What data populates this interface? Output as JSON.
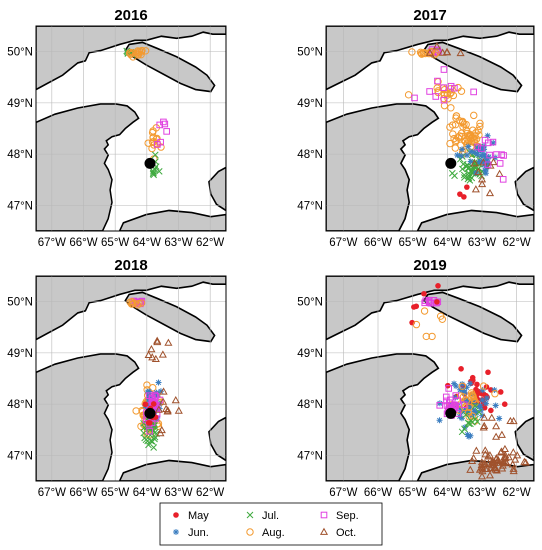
{
  "chart_data": {
    "type": "scatter",
    "legend": {
      "placement": "bottom-center",
      "entries": [
        {
          "key": "may",
          "label": "May",
          "color": "#e8202a",
          "marker": "dot"
        },
        {
          "key": "jun",
          "label": "Jun.",
          "color": "#3a7dc0",
          "marker": "asterisk"
        },
        {
          "key": "jul",
          "label": "Jul.",
          "color": "#3faa3f",
          "marker": "x"
        },
        {
          "key": "aug",
          "label": "Aug.",
          "color": "#f39a30",
          "marker": "circle"
        },
        {
          "key": "sep",
          "label": "Sep.",
          "color": "#e040e0",
          "marker": "square"
        },
        {
          "key": "oct",
          "label": "Oct.",
          "color": "#a0522d",
          "marker": "triangle"
        }
      ]
    },
    "axes": {
      "lon_range": [
        -67.5,
        -61.5
      ],
      "lat_range": [
        46.5,
        50.5
      ],
      "lon_ticks": [
        -67,
        -66,
        -65,
        -64,
        -63,
        -62
      ],
      "lon_tick_labels": [
        "67°W",
        "66°W",
        "65°W",
        "64°W",
        "63°W",
        "62°W"
      ],
      "lat_ticks": [
        47,
        48,
        49,
        50
      ],
      "lat_tick_labels": [
        "47°N",
        "48°N",
        "49°N",
        "50°N"
      ],
      "grid": true
    },
    "site": {
      "lon": -63.9,
      "lat": 47.82
    },
    "panels": [
      {
        "title": "2016",
        "clusters": [
          {
            "key": "jul",
            "lon": -64.55,
            "lat": 49.98,
            "slon": 0.12,
            "slat": 0.04,
            "n": 10
          },
          {
            "key": "aug",
            "lon": -64.25,
            "lat": 49.98,
            "slon": 0.22,
            "slat": 0.05,
            "n": 14
          },
          {
            "key": "aug",
            "lon": -63.8,
            "lat": 48.25,
            "slon": 0.22,
            "slat": 0.25,
            "n": 16
          },
          {
            "key": "sep",
            "lon": -63.55,
            "lat": 48.5,
            "slon": 0.22,
            "slat": 0.25,
            "n": 6
          },
          {
            "key": "jul",
            "lon": -63.75,
            "lat": 47.75,
            "slon": 0.15,
            "slat": 0.25,
            "n": 10
          }
        ]
      },
      {
        "title": "2017",
        "clusters": [
          {
            "key": "sep",
            "lon": -64.4,
            "lat": 50.0,
            "slon": 0.12,
            "slat": 0.03,
            "n": 8
          },
          {
            "key": "aug",
            "lon": -64.55,
            "lat": 49.98,
            "slon": 0.28,
            "slat": 0.04,
            "n": 12
          },
          {
            "key": "oct",
            "lon": -64.0,
            "lat": 49.95,
            "slon": 0.5,
            "slat": 0.12,
            "n": 6
          },
          {
            "key": "aug",
            "lon": -64.1,
            "lat": 49.2,
            "slon": 0.45,
            "slat": 0.2,
            "n": 20
          },
          {
            "key": "sep",
            "lon": -64.0,
            "lat": 49.25,
            "slon": 0.7,
            "slat": 0.35,
            "n": 10
          },
          {
            "key": "aug",
            "lon": -63.45,
            "lat": 48.4,
            "slon": 0.35,
            "slat": 0.35,
            "n": 60
          },
          {
            "key": "jul",
            "lon": -63.3,
            "lat": 47.75,
            "slon": 0.4,
            "slat": 0.25,
            "n": 45
          },
          {
            "key": "jun",
            "lon": -63.0,
            "lat": 47.95,
            "slon": 0.45,
            "slat": 0.25,
            "n": 35
          },
          {
            "key": "oct",
            "lon": -63.0,
            "lat": 47.6,
            "slon": 0.5,
            "slat": 0.35,
            "n": 10
          },
          {
            "key": "sep",
            "lon": -62.8,
            "lat": 47.9,
            "slon": 0.6,
            "slat": 0.4,
            "n": 12
          },
          {
            "key": "may",
            "lon": -63.5,
            "lat": 47.3,
            "slon": 0.3,
            "slat": 0.2,
            "n": 3
          }
        ]
      },
      {
        "title": "2018",
        "clusters": [
          {
            "key": "sep",
            "lon": -64.3,
            "lat": 50.0,
            "slon": 0.15,
            "slat": 0.03,
            "n": 8
          },
          {
            "key": "aug",
            "lon": -64.4,
            "lat": 49.97,
            "slon": 0.2,
            "slat": 0.03,
            "n": 8
          },
          {
            "key": "oct",
            "lon": -63.6,
            "lat": 49.1,
            "slon": 0.35,
            "slat": 0.3,
            "n": 8
          },
          {
            "key": "aug",
            "lon": -63.85,
            "lat": 47.9,
            "slon": 0.25,
            "slat": 0.4,
            "n": 60
          },
          {
            "key": "jun",
            "lon": -63.8,
            "lat": 48.0,
            "slon": 0.2,
            "slat": 0.35,
            "n": 45
          },
          {
            "key": "jul",
            "lon": -63.95,
            "lat": 47.5,
            "slon": 0.18,
            "slat": 0.3,
            "n": 30
          },
          {
            "key": "sep",
            "lon": -63.8,
            "lat": 47.9,
            "slon": 0.18,
            "slat": 0.3,
            "n": 30
          },
          {
            "key": "may",
            "lon": -63.85,
            "lat": 47.8,
            "slon": 0.12,
            "slat": 0.2,
            "n": 8
          },
          {
            "key": "oct",
            "lon": -63.5,
            "lat": 47.8,
            "slon": 0.35,
            "slat": 0.4,
            "n": 10
          }
        ]
      },
      {
        "title": "2019",
        "clusters": [
          {
            "key": "sep",
            "lon": -64.45,
            "lat": 50.0,
            "slon": 0.2,
            "slat": 0.04,
            "n": 10
          },
          {
            "key": "may",
            "lon": -64.6,
            "lat": 49.95,
            "slon": 0.5,
            "slat": 0.3,
            "n": 6
          },
          {
            "key": "aug",
            "lon": -64.6,
            "lat": 49.4,
            "slon": 0.7,
            "slat": 0.35,
            "n": 6
          },
          {
            "key": "may",
            "lon": -63.2,
            "lat": 48.2,
            "slon": 0.55,
            "slat": 0.3,
            "n": 40
          },
          {
            "key": "jun",
            "lon": -63.4,
            "lat": 48.0,
            "slon": 0.55,
            "slat": 0.4,
            "n": 55
          },
          {
            "key": "aug",
            "lon": -63.5,
            "lat": 48.0,
            "slon": 0.5,
            "slat": 0.35,
            "n": 25
          },
          {
            "key": "sep",
            "lon": -63.9,
            "lat": 47.95,
            "slon": 0.25,
            "slat": 0.2,
            "n": 25
          },
          {
            "key": "jul",
            "lon": -63.4,
            "lat": 47.7,
            "slon": 0.4,
            "slat": 0.3,
            "n": 12
          },
          {
            "key": "oct",
            "lon": -62.6,
            "lat": 46.85,
            "slon": 0.55,
            "slat": 0.18,
            "n": 60
          },
          {
            "key": "oct",
            "lon": -62.5,
            "lat": 47.6,
            "slon": 0.5,
            "slat": 0.3,
            "n": 10
          }
        ]
      }
    ]
  }
}
